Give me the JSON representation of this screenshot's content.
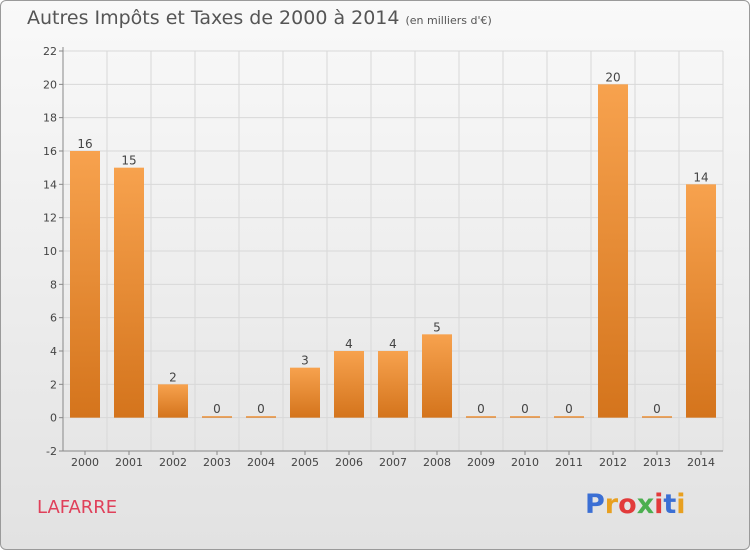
{
  "title": "Autres Impôts et Taxes de 2000 à 2014",
  "unit": "(en milliers d'€)",
  "commune": "LAFARRE",
  "logo": {
    "text": "Proxiti",
    "letter_colors": [
      "#3b6fd4",
      "#e8a020",
      "#e23b3b",
      "#4caf50",
      "#e23b3b",
      "#3b6fd4",
      "#e8a020"
    ]
  },
  "chart_data": {
    "type": "bar",
    "categories": [
      "2000",
      "2001",
      "2002",
      "2003",
      "2004",
      "2005",
      "2006",
      "2007",
      "2008",
      "2009",
      "2010",
      "2011",
      "2012",
      "2013",
      "2014"
    ],
    "values": [
      16,
      15,
      2,
      0,
      0,
      3,
      4,
      4,
      5,
      0,
      0,
      0,
      20,
      0,
      14
    ],
    "value_labels": [
      "16",
      "15",
      "2",
      "0",
      "0",
      "3",
      "4",
      "4",
      "5",
      "0",
      "0",
      "0",
      "20",
      "0",
      "14"
    ],
    "ylim": [
      -2,
      22
    ],
    "yticks": [
      -2,
      0,
      2,
      4,
      6,
      8,
      10,
      12,
      14,
      16,
      18,
      20,
      22
    ],
    "ytick_labels": [
      "-2",
      "0",
      "2",
      "4",
      "6",
      "8",
      "10",
      "12",
      "14",
      "16",
      "18",
      "20",
      "22"
    ],
    "grid": true,
    "bar_color_light": "#f7a24e",
    "bar_color_dark": "#d4741c"
  }
}
